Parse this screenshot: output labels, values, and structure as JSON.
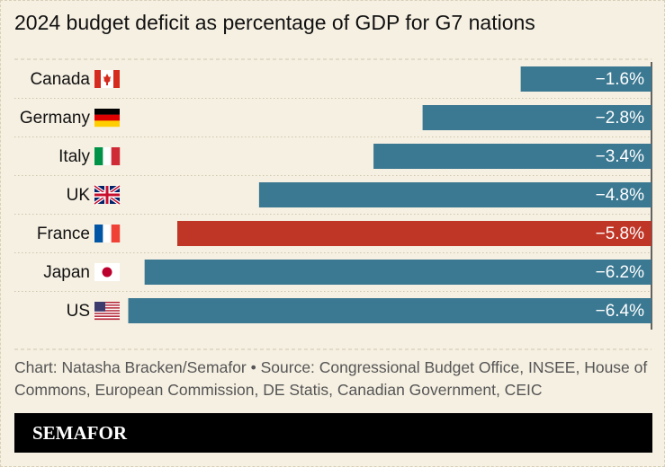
{
  "chart_data": {
    "type": "hbar",
    "title": "2024 budget deficit as percentage of GDP for G7 nations",
    "categories": [
      "Canada",
      "Germany",
      "Italy",
      "UK",
      "France",
      "Japan",
      "US"
    ],
    "values": [
      -1.6,
      -2.8,
      -3.4,
      -4.8,
      -5.8,
      -6.2,
      -6.4
    ],
    "value_labels": [
      "−1.6%",
      "−2.8%",
      "−3.4%",
      "−4.8%",
      "−5.8%",
      "−6.2%",
      "−6.4%"
    ],
    "colors": [
      "#3b7891",
      "#3b7891",
      "#3b7891",
      "#3b7891",
      "#bf3526",
      "#3b7891",
      "#3b7891"
    ],
    "xlim": [
      -7,
      0
    ]
  },
  "footer": {
    "source": "Chart: Natasha Bracken/Semafor • Source: Congressional Budget Office, INSEE, House of Commons, European Commission, DE Statis, Canadian Government, CEIC",
    "brand": "SEMAFOR"
  }
}
